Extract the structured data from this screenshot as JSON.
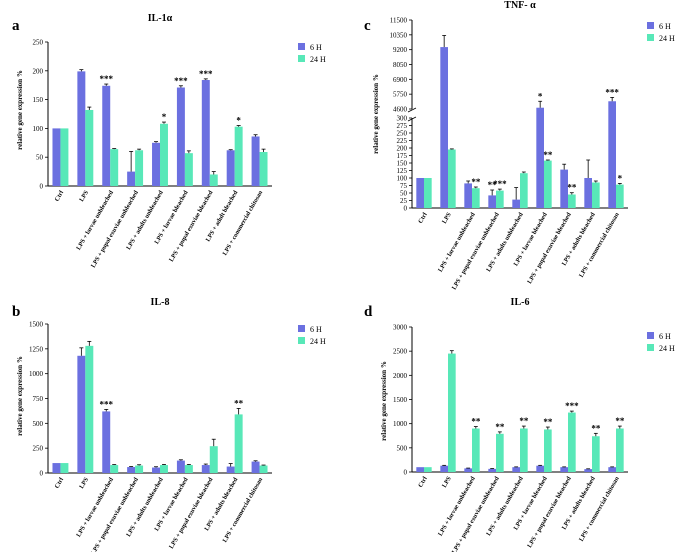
{
  "figure_title": "IL-1α, TNF-α, IL-8 and IL-6 relative gene expression",
  "legend": [
    {
      "label": "6 H",
      "color": "#6b70e0"
    },
    {
      "label": "24 H",
      "color": "#58e8b8"
    }
  ],
  "chart_data": [
    {
      "panel": "a",
      "type": "bar",
      "title": "IL-1α",
      "ylabel": "relative gene expression %",
      "ylim": [
        0,
        250
      ],
      "yticks": [
        "0",
        "50",
        "100",
        "150",
        "200",
        "250"
      ],
      "categories": [
        "Ctrl",
        "LPS",
        "LPS + larvae unbleached",
        "LPS + pupal exuviae unbleached",
        "LPS + adults unbleached",
        "LPS + larvae bleached",
        "LPS + pupal exuviae bleached",
        "LPS + adult bleached",
        "LPS + commercial chitosan"
      ],
      "series": [
        {
          "name": "6 H",
          "values": [
            100,
            199,
            174,
            25,
            75,
            171,
            184,
            62,
            86
          ],
          "errors": [
            0,
            3,
            3,
            35,
            2,
            3,
            2,
            1,
            3
          ],
          "significance": [
            "",
            "",
            "***",
            "",
            "",
            "***",
            "***",
            "",
            ""
          ]
        },
        {
          "name": "24 H",
          "values": [
            100,
            132,
            64,
            62,
            108,
            57,
            20,
            103,
            59
          ],
          "errors": [
            0,
            5,
            1,
            2,
            3,
            4,
            5,
            2,
            5
          ],
          "significance": [
            "",
            "",
            "",
            "",
            "*",
            "",
            "",
            "*",
            ""
          ]
        }
      ]
    },
    {
      "panel": "c",
      "type": "bar",
      "title": "TNF- α",
      "ylabel": "relative gene expression %",
      "broken_axis": true,
      "lower_range": [
        0,
        300
      ],
      "upper_range": [
        4600,
        11500
      ],
      "yticks_lower": [
        "0",
        "25",
        "50",
        "75",
        "100",
        "125",
        "150",
        "175",
        "200",
        "225",
        "250",
        "275",
        "300"
      ],
      "yticks_upper": [
        "4600",
        "5750",
        "6900",
        "8050",
        "9200",
        "10350",
        "11500"
      ],
      "categories": [
        "Ctrl",
        "LPS",
        "LPS + larvae unbleached",
        "LPS + pupal exuviae unbleached",
        "LPS + adults unbleached",
        "LPS + larvae bleached",
        "LPS + pupal exuviae bleached",
        "LPS + adults bleached",
        "LPS + commercial chitosan"
      ],
      "series": [
        {
          "name": "6 H",
          "values": [
            100,
            9400,
            82,
            42,
            28,
            4700,
            128,
            100,
            5200
          ],
          "errors": [
            0,
            900,
            8,
            18,
            40,
            500,
            18,
            60,
            300
          ],
          "significance": [
            "",
            "",
            "",
            "**",
            "",
            "*",
            "",
            "",
            "***"
          ]
        },
        {
          "name": "24 H",
          "values": [
            100,
            195,
            66,
            58,
            116,
            158,
            45,
            85,
            78
          ],
          "errors": [
            0,
            2,
            4,
            5,
            4,
            2,
            6,
            5,
            4
          ],
          "significance": [
            "",
            "",
            "**",
            "***",
            "",
            "**",
            "**",
            "",
            "*"
          ]
        }
      ]
    },
    {
      "panel": "b",
      "type": "bar",
      "title": "IL-8",
      "ylabel": "relative gene expression %",
      "ylim": [
        0,
        1500
      ],
      "yticks": [
        "0",
        "250",
        "500",
        "750",
        "1000",
        "1250",
        "1500"
      ],
      "categories": [
        "Ctrl",
        "LPS",
        "LPS + larvae unbleached",
        "LPS + pupal exuviae unbleached",
        "LPS + adults unbleached",
        "LPS + larvae bleached",
        "LPS + pupal exuviae bleached",
        "LPS + adults bleached",
        "LPS + commercial chitosan"
      ],
      "series": [
        {
          "name": "6 H",
          "values": [
            100,
            1180,
            620,
            60,
            55,
            125,
            80,
            65,
            115
          ],
          "errors": [
            0,
            80,
            20,
            5,
            8,
            8,
            10,
            30,
            8
          ],
          "significance": [
            "",
            "",
            "***",
            "",
            "",
            "",
            "",
            "",
            ""
          ]
        },
        {
          "name": "24 H",
          "values": [
            100,
            1280,
            80,
            75,
            80,
            80,
            270,
            590,
            75
          ],
          "errors": [
            0,
            45,
            5,
            8,
            6,
            6,
            70,
            60,
            5
          ],
          "significance": [
            "",
            "",
            "",
            "",
            "",
            "",
            "",
            "**",
            ""
          ]
        }
      ]
    },
    {
      "panel": "d",
      "type": "bar",
      "title": "IL-6",
      "ylabel": "relative gene expression %",
      "ylim": [
        0,
        3000
      ],
      "yticks": [
        "0",
        "500",
        "1000",
        "1500",
        "2000",
        "2500",
        "3000"
      ],
      "categories": [
        "Ctrl",
        "LPS",
        "LPS + larvae unbleached",
        "LPS + pupal exuviae unbleached",
        "LPS + adults unbleached",
        "LPS + larvae bleached",
        "LPS + pupal exuviae bleached",
        "LPS + adults bleached",
        "LPS + commercial chitosan"
      ],
      "series": [
        {
          "name": "6 H",
          "values": [
            100,
            130,
            75,
            65,
            100,
            130,
            100,
            60,
            100
          ],
          "errors": [
            0,
            8,
            6,
            6,
            6,
            8,
            6,
            6,
            6
          ],
          "significance": [
            "",
            "",
            "",
            "",
            "",
            "",
            "",
            "",
            ""
          ]
        },
        {
          "name": "24 H",
          "values": [
            100,
            2450,
            900,
            790,
            900,
            880,
            1230,
            740,
            900
          ],
          "errors": [
            0,
            60,
            40,
            40,
            50,
            50,
            30,
            60,
            50
          ],
          "significance": [
            "",
            "",
            "**",
            "**",
            "**",
            "**",
            "***",
            "**",
            "**"
          ]
        }
      ]
    }
  ]
}
